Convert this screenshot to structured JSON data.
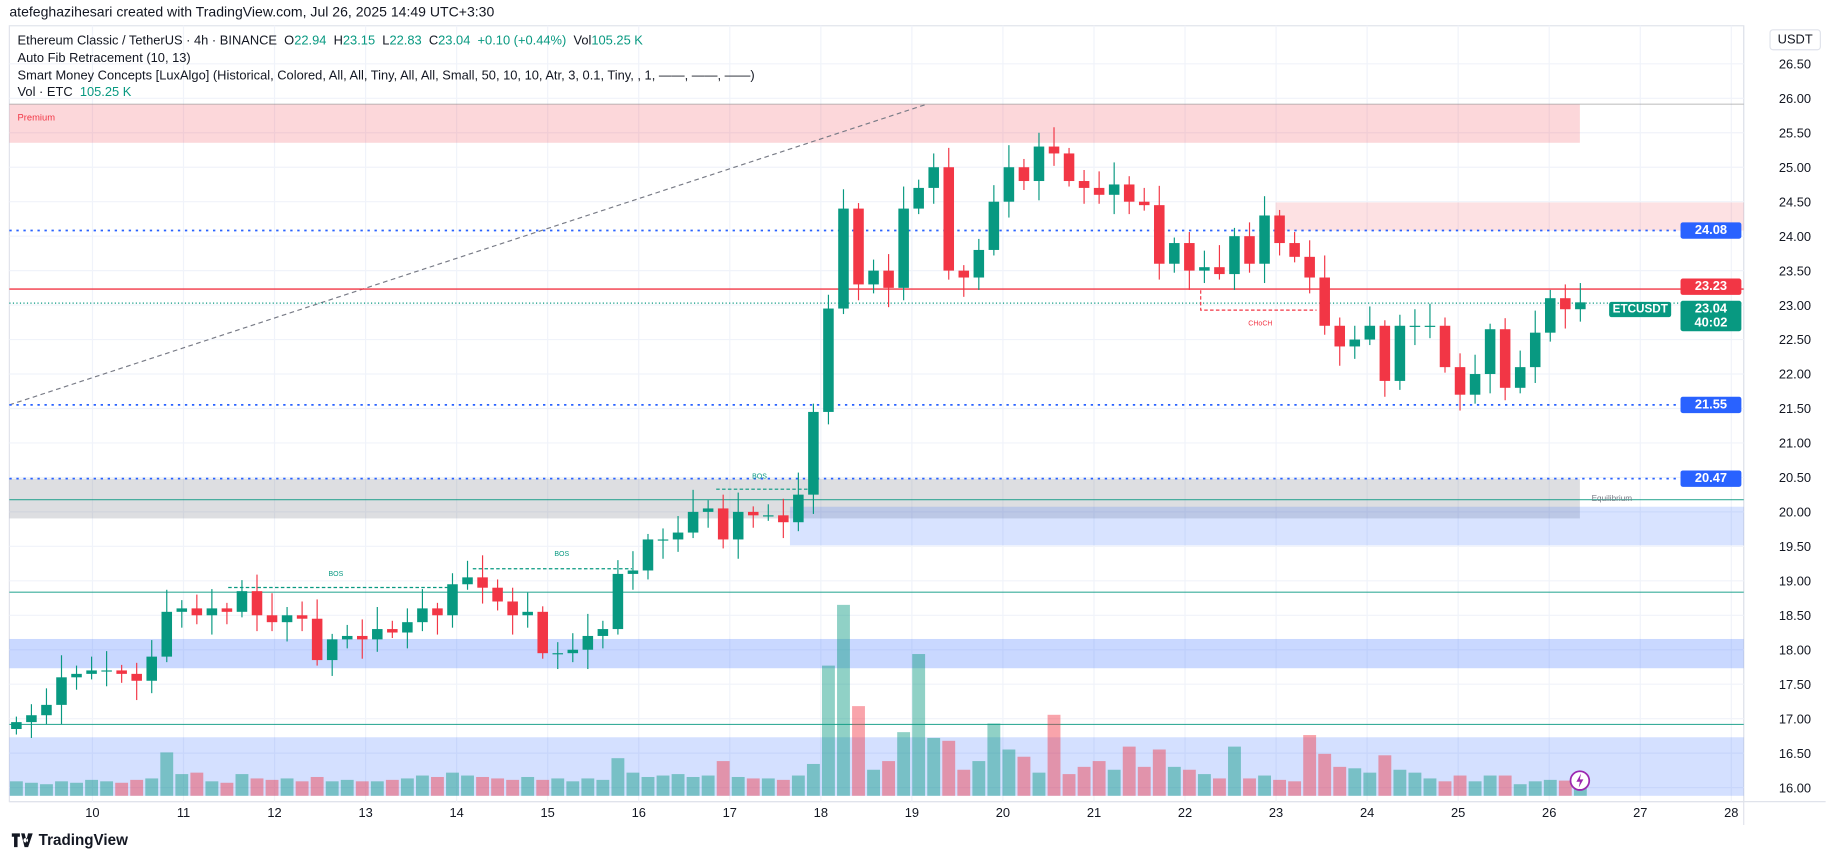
{
  "header": {
    "credit": "atefeghazihesari created with TradingView.com, Jul 26, 2025 14:49 UTC+3:30"
  },
  "legend": {
    "symbol": "Ethereum Classic / TetherUS · 4h · BINANCE",
    "o_label": "O",
    "o": "22.94",
    "h_label": "H",
    "h": "23.15",
    "l_label": "L",
    "l": "22.83",
    "c_label": "C",
    "c": "23.04",
    "change": "+0.10 (+0.44%)",
    "vol_label": "Vol",
    "vol": "105.25 K",
    "fib": "Auto Fib Retracement (10, 13)",
    "smc": "Smart Money Concepts [LuxAlgo] (Historical, Colored, All, All, Tiny, All, All, Small, 50, 10, 10, Atr, 3, 0.1, Tiny, , 1, ——, ——, ——)",
    "vol_ind": "Vol · ETC",
    "vol_ind_val": "105.25 K"
  },
  "axis": {
    "currency": "USDT"
  },
  "price_tags": {
    "fib_high": "24.08",
    "red_line": "23.23",
    "symbol": "ETCUSDT",
    "last": "23.04",
    "countdown": "40:02",
    "fib_mid": "21.55",
    "fib_low": "20.47"
  },
  "annotations": {
    "bos1": "BOS",
    "bos2": "BOS",
    "bos3": "BOS",
    "choch": "CHoCH",
    "equilibrium": "Equilibrium",
    "premium": "Premium"
  },
  "footer": {
    "brand": "TradingView"
  },
  "colors": {
    "up": "#089981",
    "down": "#f23645",
    "blue": "#2962ff"
  },
  "chart_data": {
    "type": "candlestick",
    "title": "Ethereum Classic / TetherUS · 4h · BINANCE",
    "ylim": [
      16.0,
      26.5
    ],
    "yticks": [
      "26.50",
      "26.00",
      "25.50",
      "25.00",
      "24.50",
      "24.00",
      "23.50",
      "23.00",
      "22.50",
      "22.00",
      "21.50",
      "21.00",
      "20.50",
      "20.00",
      "19.50",
      "19.00",
      "18.50",
      "18.00",
      "17.50",
      "17.00",
      "16.50",
      "16.00"
    ],
    "xticks": [
      "10",
      "11",
      "12",
      "13",
      "14",
      "15",
      "16",
      "17",
      "18",
      "19",
      "20",
      "21",
      "22",
      "23",
      "24",
      "25",
      "26",
      "27",
      "28"
    ],
    "closes": [
      16.95,
      17.05,
      17.2,
      17.6,
      17.65,
      17.7,
      17.7,
      17.65,
      17.55,
      17.9,
      18.55,
      18.6,
      18.5,
      18.6,
      18.55,
      18.85,
      18.5,
      18.4,
      18.5,
      18.45,
      17.85,
      18.15,
      18.2,
      18.15,
      18.3,
      18.25,
      18.4,
      18.6,
      18.5,
      18.95,
      19.05,
      18.9,
      18.7,
      18.5,
      18.55,
      17.95,
      17.95,
      18.0,
      18.2,
      18.3,
      19.1,
      19.15,
      19.6,
      19.6,
      19.7,
      20.0,
      20.05,
      19.6,
      20.0,
      19.95,
      19.95,
      19.85,
      20.25,
      21.45,
      22.95,
      24.4,
      23.3,
      23.5,
      23.25,
      24.4,
      24.7,
      25.0,
      23.5,
      23.4,
      23.8,
      24.5,
      25.0,
      24.8,
      25.3,
      25.2,
      24.8,
      24.7,
      24.6,
      24.75,
      24.5,
      24.45,
      23.6,
      23.9,
      23.5,
      23.55,
      23.45,
      24.0,
      23.6,
      24.3,
      23.9,
      23.7,
      23.4,
      22.7,
      22.4,
      22.5,
      22.7,
      21.9,
      22.7,
      22.7,
      22.7,
      22.1,
      21.7,
      22.0,
      22.65,
      21.8,
      22.1,
      22.6,
      23.1,
      22.94,
      23.04
    ],
    "volumes_k": [
      100,
      90,
      80,
      100,
      90,
      110,
      100,
      90,
      110,
      120,
      300,
      150,
      160,
      100,
      90,
      150,
      120,
      110,
      120,
      100,
      130,
      100,
      110,
      100,
      100,
      110,
      120,
      140,
      130,
      160,
      140,
      130,
      120,
      110,
      130,
      110,
      120,
      100,
      120,
      110,
      260,
      160,
      130,
      140,
      150,
      130,
      140,
      240,
      130,
      120,
      120,
      110,
      140,
      220,
      900,
      1320,
      620,
      180,
      240,
      440,
      980,
      400,
      380,
      180,
      240,
      500,
      320,
      270,
      160,
      560,
      150,
      200,
      240,
      180,
      340,
      200,
      320,
      200,
      180,
      150,
      120,
      340,
      120,
      140,
      110,
      100,
      420,
      290,
      200,
      190,
      160,
      280,
      180,
      160,
      120,
      100,
      140,
      100,
      140,
      140,
      80,
      100,
      110,
      105,
      105
    ]
  }
}
